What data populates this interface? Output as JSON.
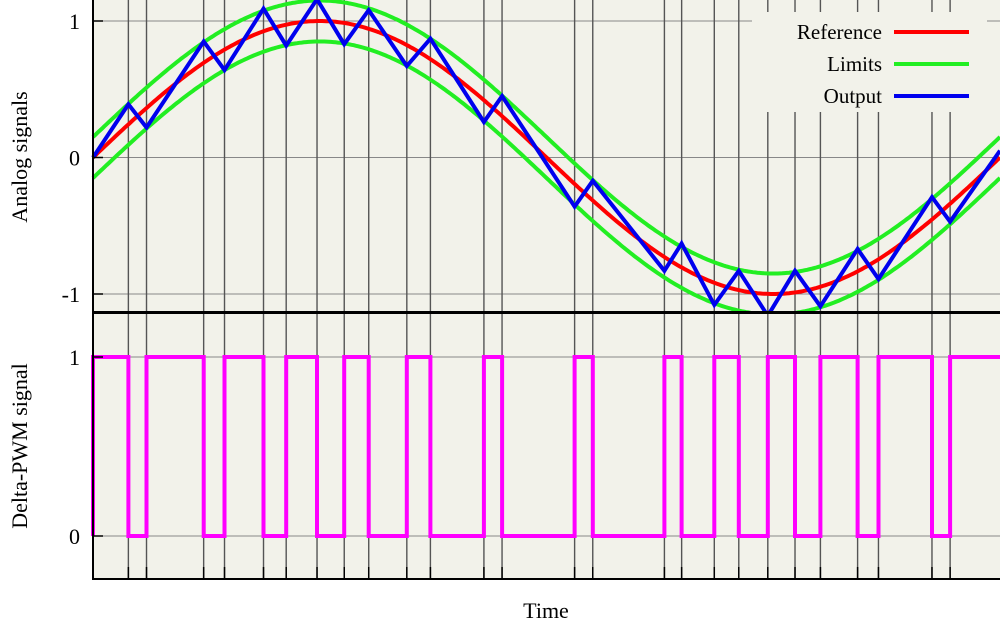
{
  "chart_data": [
    {
      "type": "line",
      "ylabel": "Analog signals",
      "ylim": [
        -1.2,
        1.2
      ],
      "yticks": [
        1,
        0,
        -1
      ],
      "ytick_labels": [
        "1",
        "0",
        "-1"
      ],
      "legend_position": "top-right",
      "x_range": [
        0,
        1
      ],
      "series": [
        {
          "name": "Reference",
          "color": "#ff0000",
          "function": "sin(2*pi*x)"
        },
        {
          "name": "Limits",
          "color": "#22ee22",
          "function": "sin(2*pi*x) + 0.15 and sin(2*pi*x) - 0.15"
        },
        {
          "name": "Output",
          "color": "#0000ee",
          "points": [
            [
              0,
              0
            ],
            [
              0.039,
              0.39
            ],
            [
              0.059,
              0.22
            ],
            [
              0.122,
              0.85
            ],
            [
              0.145,
              0.64
            ],
            [
              0.188,
              1.09
            ],
            [
              0.213,
              0.82
            ],
            [
              0.247,
              1.16
            ],
            [
              0.277,
              0.83
            ],
            [
              0.304,
              1.08
            ],
            [
              0.346,
              0.67
            ],
            [
              0.372,
              0.87
            ],
            [
              0.431,
              0.26
            ],
            [
              0.451,
              0.45
            ],
            [
              0.531,
              -0.36
            ],
            [
              0.551,
              -0.17
            ],
            [
              0.63,
              -0.83
            ],
            [
              0.649,
              -0.63
            ],
            [
              0.685,
              -1.08
            ],
            [
              0.712,
              -0.83
            ],
            [
              0.744,
              -1.16
            ],
            [
              0.774,
              -0.83
            ],
            [
              0.802,
              -1.09
            ],
            [
              0.843,
              -0.67
            ],
            [
              0.866,
              -0.89
            ],
            [
              0.925,
              -0.29
            ],
            [
              0.945,
              -0.47
            ],
            [
              1.0,
              0.05
            ]
          ]
        }
      ]
    },
    {
      "type": "line",
      "ylabel": "Delta-PWM signal",
      "xlabel": "Time",
      "ylim": [
        -0.25,
        1.1
      ],
      "yticks": [
        1,
        0
      ],
      "ytick_labels": [
        "1",
        "0"
      ],
      "series": [
        {
          "name": "Delta-PWM",
          "color": "#ff00ff",
          "step": true,
          "x": [
            0,
            0.039,
            0.059,
            0.122,
            0.145,
            0.188,
            0.213,
            0.247,
            0.277,
            0.304,
            0.346,
            0.372,
            0.431,
            0.451,
            0.531,
            0.551,
            0.63,
            0.649,
            0.685,
            0.712,
            0.744,
            0.774,
            0.802,
            0.843,
            0.866,
            0.925,
            0.945,
            1.0
          ],
          "values": [
            1,
            0,
            1,
            0,
            1,
            0,
            1,
            0,
            1,
            0,
            1,
            0,
            1,
            0,
            1,
            0,
            1,
            0,
            1,
            0,
            1,
            0,
            1,
            0,
            1,
            0,
            1,
            1
          ]
        }
      ],
      "switch_times": [
        0.039,
        0.059,
        0.122,
        0.145,
        0.188,
        0.213,
        0.247,
        0.277,
        0.304,
        0.346,
        0.372,
        0.431,
        0.451,
        0.531,
        0.551,
        0.63,
        0.649,
        0.685,
        0.712,
        0.744,
        0.774,
        0.802,
        0.843,
        0.866,
        0.925,
        0.945
      ]
    }
  ]
}
